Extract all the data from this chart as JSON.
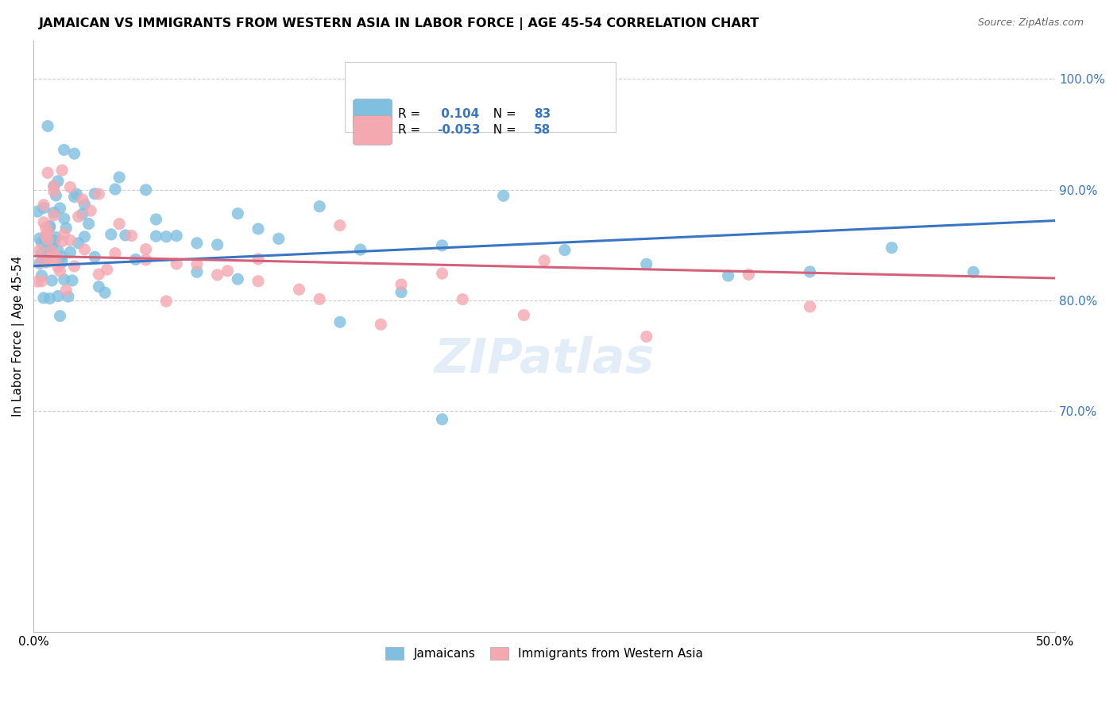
{
  "title": "JAMAICAN VS IMMIGRANTS FROM WESTERN ASIA IN LABOR FORCE | AGE 45-54 CORRELATION CHART",
  "source": "Source: ZipAtlas.com",
  "ylabel": "In Labor Force | Age 45-54",
  "xlim": [
    0.0,
    0.5
  ],
  "ylim": [
    0.5,
    1.035
  ],
  "blue_color": "#7fbfdf",
  "pink_color": "#f4a8b0",
  "blue_line_color": "#3a75c4",
  "pink_line_color": "#d4607a",
  "r_blue": 0.104,
  "n_blue": 83,
  "r_pink": -0.053,
  "n_pink": 58,
  "watermark": "ZIPatlas",
  "blue_trend_x0": 0.0,
  "blue_trend_y0": 0.831,
  "blue_trend_x1": 0.5,
  "blue_trend_y1": 0.872,
  "pink_trend_x0": 0.0,
  "pink_trend_y0": 0.84,
  "pink_trend_x1": 0.5,
  "pink_trend_y1": 0.82,
  "blue_scatter_x": [
    0.002,
    0.003,
    0.003,
    0.004,
    0.004,
    0.004,
    0.005,
    0.005,
    0.005,
    0.006,
    0.006,
    0.006,
    0.007,
    0.007,
    0.007,
    0.008,
    0.008,
    0.008,
    0.009,
    0.009,
    0.01,
    0.01,
    0.01,
    0.011,
    0.011,
    0.012,
    0.012,
    0.013,
    0.013,
    0.014,
    0.014,
    0.015,
    0.015,
    0.016,
    0.017,
    0.018,
    0.019,
    0.02,
    0.021,
    0.022,
    0.024,
    0.025,
    0.027,
    0.03,
    0.032,
    0.035,
    0.038,
    0.042,
    0.045,
    0.05,
    0.055,
    0.06,
    0.065,
    0.07,
    0.08,
    0.09,
    0.1,
    0.11,
    0.12,
    0.14,
    0.16,
    0.18,
    0.2,
    0.23,
    0.26,
    0.3,
    0.34,
    0.38,
    0.42,
    0.46,
    0.007,
    0.01,
    0.012,
    0.015,
    0.02,
    0.025,
    0.03,
    0.04,
    0.06,
    0.08,
    0.1,
    0.15,
    0.2
  ],
  "blue_scatter_y": [
    0.838,
    0.845,
    0.855,
    0.832,
    0.842,
    0.852,
    0.836,
    0.846,
    0.858,
    0.84,
    0.85,
    0.862,
    0.835,
    0.848,
    0.86,
    0.838,
    0.852,
    0.864,
    0.842,
    0.856,
    0.838,
    0.85,
    0.862,
    0.844,
    0.858,
    0.84,
    0.855,
    0.843,
    0.857,
    0.845,
    0.858,
    0.847,
    0.86,
    0.852,
    0.855,
    0.86,
    0.848,
    0.857,
    0.852,
    0.86,
    0.857,
    0.862,
    0.855,
    0.858,
    0.855,
    0.852,
    0.85,
    0.855,
    0.852,
    0.85,
    0.852,
    0.852,
    0.855,
    0.852,
    0.855,
    0.858,
    0.855,
    0.852,
    0.858,
    0.855,
    0.855,
    0.855,
    0.852,
    0.852,
    0.855,
    0.855,
    0.852,
    0.852,
    0.855,
    0.855,
    0.92,
    0.91,
    0.905,
    0.9,
    0.895,
    0.892,
    0.888,
    0.882,
    0.878,
    0.87,
    0.862,
    0.758,
    0.682
  ],
  "pink_scatter_x": [
    0.002,
    0.003,
    0.004,
    0.004,
    0.005,
    0.005,
    0.006,
    0.006,
    0.007,
    0.007,
    0.008,
    0.008,
    0.009,
    0.01,
    0.01,
    0.011,
    0.012,
    0.013,
    0.014,
    0.015,
    0.016,
    0.018,
    0.02,
    0.022,
    0.025,
    0.028,
    0.032,
    0.036,
    0.04,
    0.048,
    0.055,
    0.065,
    0.08,
    0.095,
    0.11,
    0.13,
    0.15,
    0.18,
    0.21,
    0.25,
    0.007,
    0.01,
    0.014,
    0.018,
    0.024,
    0.032,
    0.042,
    0.055,
    0.07,
    0.09,
    0.11,
    0.14,
    0.17,
    0.2,
    0.24,
    0.3,
    0.35,
    0.38
  ],
  "pink_scatter_y": [
    0.84,
    0.85,
    0.832,
    0.842,
    0.838,
    0.848,
    0.842,
    0.852,
    0.845,
    0.855,
    0.84,
    0.852,
    0.846,
    0.842,
    0.855,
    0.848,
    0.842,
    0.848,
    0.844,
    0.85,
    0.845,
    0.842,
    0.845,
    0.84,
    0.842,
    0.838,
    0.835,
    0.835,
    0.835,
    0.832,
    0.832,
    0.83,
    0.828,
    0.826,
    0.828,
    0.826,
    0.824,
    0.824,
    0.822,
    0.82,
    0.912,
    0.905,
    0.898,
    0.89,
    0.882,
    0.872,
    0.862,
    0.852,
    0.842,
    0.836,
    0.832,
    0.828,
    0.824,
    0.822,
    0.82,
    0.816,
    0.814,
    0.812
  ]
}
